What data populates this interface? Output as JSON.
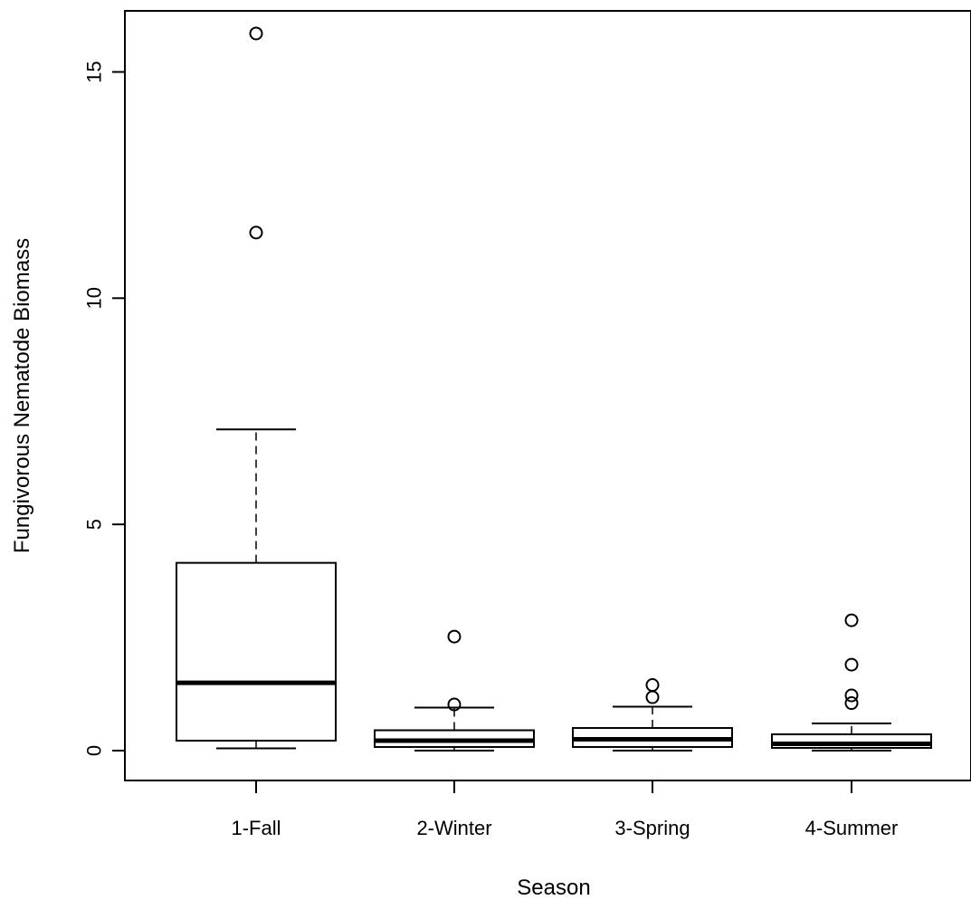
{
  "chart_data": {
    "type": "boxplot",
    "title": "",
    "xlabel": "Season",
    "ylabel": "Fungivorous Nematode Biomass",
    "ylim": [
      -0.66,
      16.35
    ],
    "yticks": [
      0,
      5,
      10,
      15
    ],
    "ytick_labels": [
      "0",
      "5",
      "10",
      "15"
    ],
    "grid": false,
    "legend": "none",
    "categories": [
      "1-Fall",
      "2-Winter",
      "3-Spring",
      "4-Summer"
    ],
    "boxes": [
      {
        "category": "1-Fall",
        "whisker_low": 0.05,
        "q1": 0.22,
        "median": 1.5,
        "q3": 4.15,
        "whisker_high": 7.1,
        "outliers": [
          11.45,
          15.85
        ]
      },
      {
        "category": "2-Winter",
        "whisker_low": 0.0,
        "q1": 0.08,
        "median": 0.22,
        "q3": 0.45,
        "whisker_high": 0.95,
        "outliers": [
          1.02,
          2.52
        ]
      },
      {
        "category": "3-Spring",
        "whisker_low": 0.0,
        "q1": 0.08,
        "median": 0.25,
        "q3": 0.5,
        "whisker_high": 0.97,
        "outliers": [
          1.18,
          1.45
        ]
      },
      {
        "category": "4-Summer",
        "whisker_low": 0.0,
        "q1": 0.06,
        "median": 0.15,
        "q3": 0.36,
        "whisker_high": 0.6,
        "outliers": [
          1.05,
          1.22,
          1.9,
          2.88
        ]
      }
    ],
    "colors": {
      "stroke": "#000000",
      "box_fill": "#ffffff"
    }
  }
}
